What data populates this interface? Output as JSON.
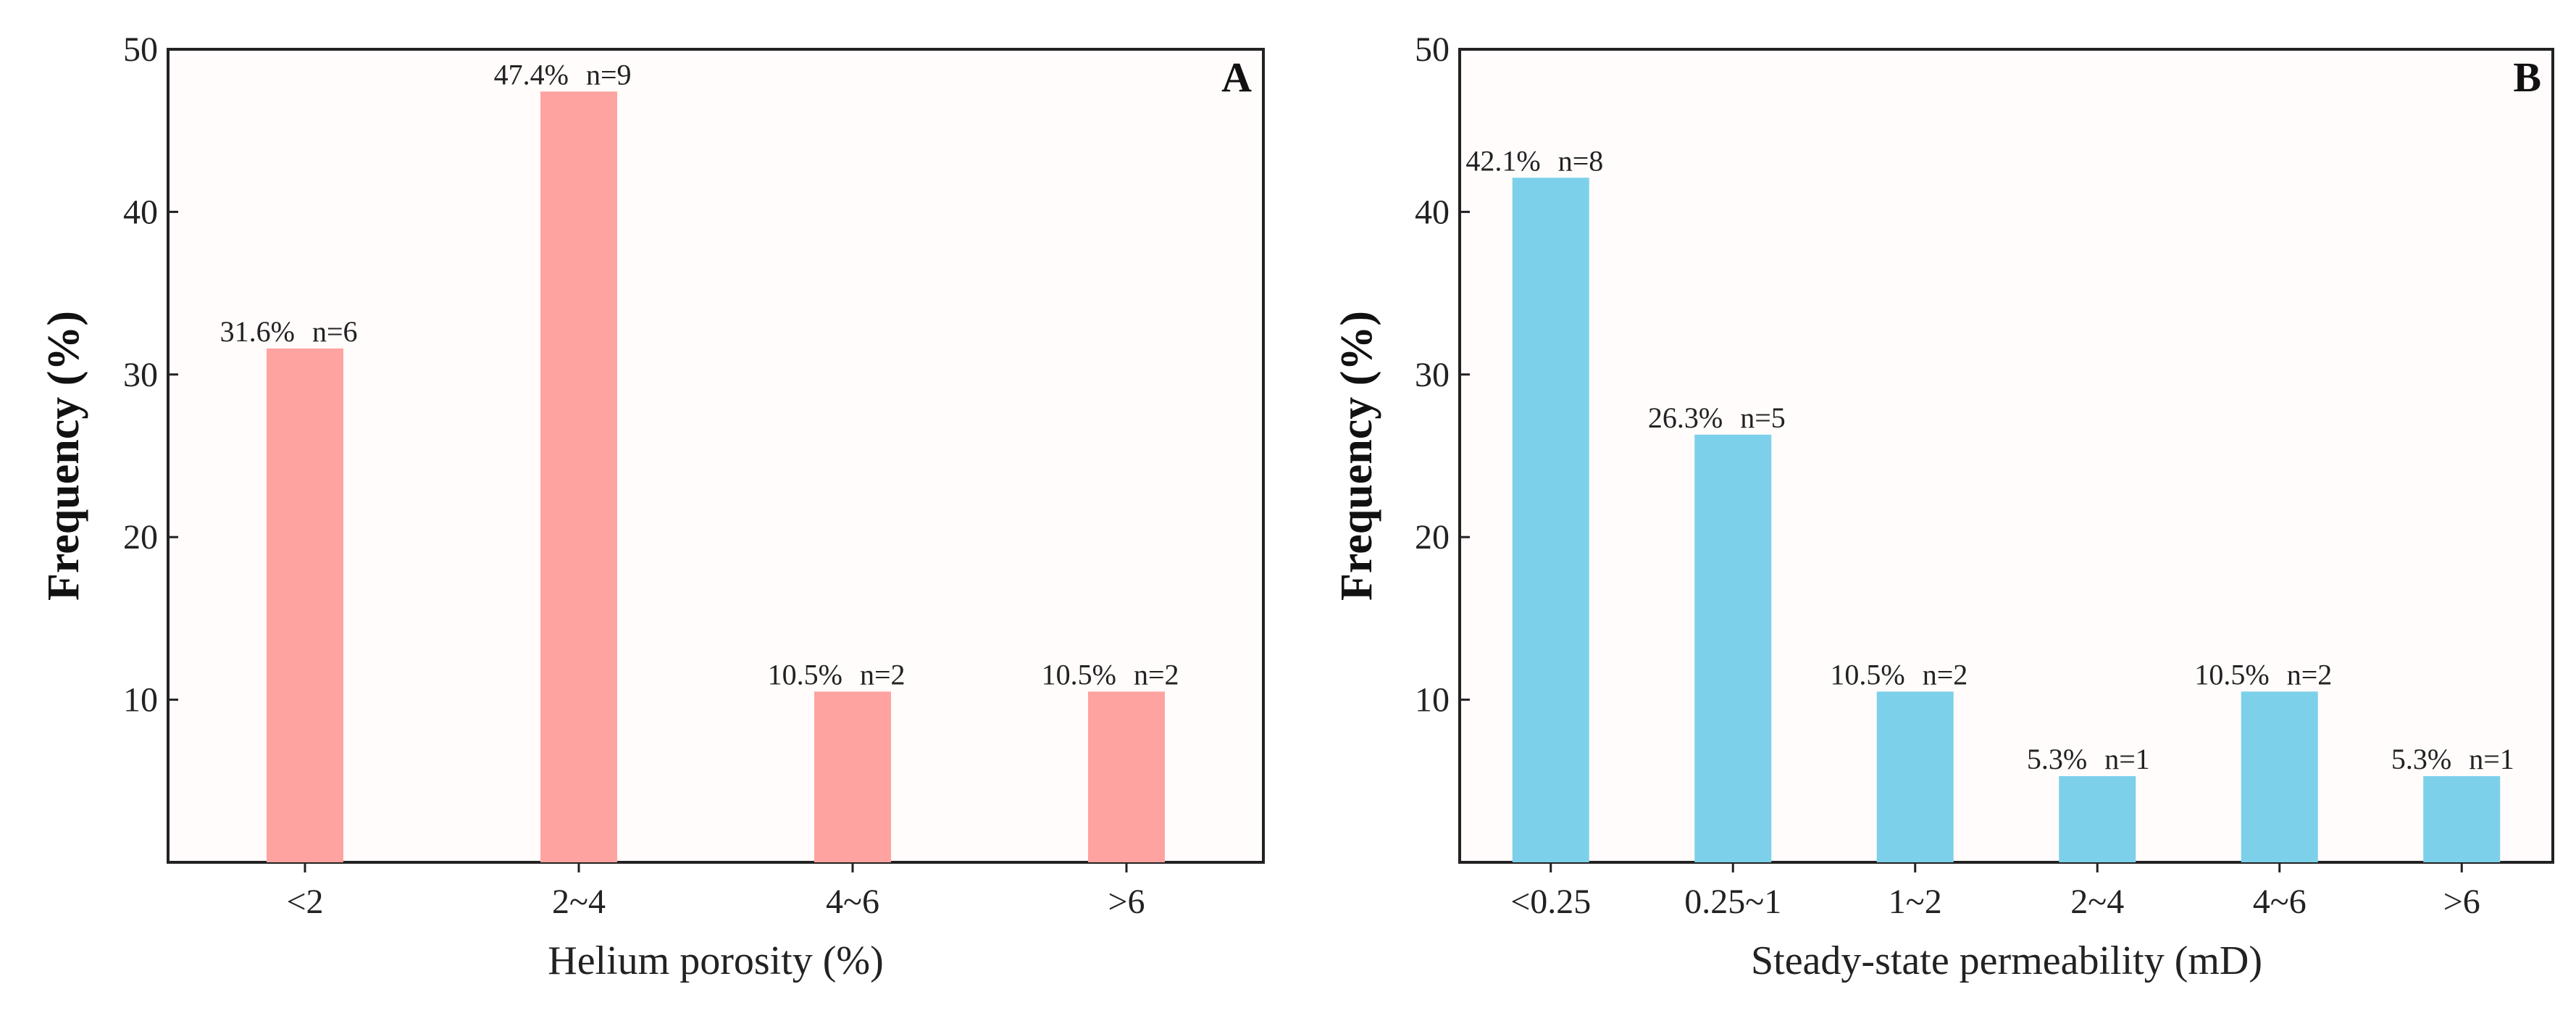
{
  "chart_data": [
    {
      "type": "bar",
      "panel_label": "A",
      "categories": [
        "<2",
        "2~4",
        "4~6",
        ">6"
      ],
      "values": [
        31.6,
        47.4,
        10.5,
        10.5
      ],
      "value_labels": [
        "31.6%",
        "47.4%",
        "10.5%",
        "10.5%"
      ],
      "count_labels": [
        "n=6",
        "n=9",
        "n=2",
        "n=2"
      ],
      "xlabel": "Helium porosity (%)",
      "ylabel": "Frequency (%)",
      "ylim": [
        0,
        50
      ],
      "yticks": [
        "10",
        "20",
        "30",
        "40",
        "50"
      ],
      "bar_color": "#ffa3a0",
      "grid": false
    },
    {
      "type": "bar",
      "panel_label": "B",
      "categories": [
        "<0.25",
        "0.25~1",
        "1~2",
        "2~4",
        "4~6",
        ">6"
      ],
      "values": [
        42.1,
        26.3,
        10.5,
        5.3,
        10.5,
        5.3
      ],
      "value_labels": [
        "42.1%",
        "26.3%",
        "10.5%",
        "5.3%",
        "10.5%",
        "5.3%"
      ],
      "count_labels": [
        "n=8",
        "n=5",
        "n=2",
        "n=1",
        "n=2",
        "n=1"
      ],
      "xlabel": "Steady-state permeability (mD)",
      "ylabel": "Frequency (%)",
      "ylim": [
        0,
        50
      ],
      "yticks": [
        "10",
        "20",
        "30",
        "40",
        "50"
      ],
      "bar_color": "#7dd0ea",
      "grid": false
    }
  ]
}
